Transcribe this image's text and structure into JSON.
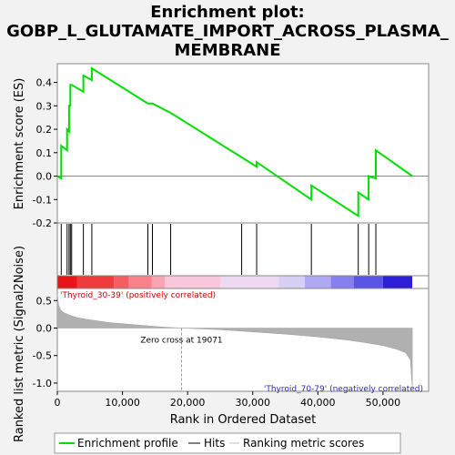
{
  "chart_data": {
    "type": "line",
    "title_lines": [
      "Enrichment plot:",
      "GOBP_L_GLUTAMATE_IMPORT_ACROSS_PLASMA_",
      "MEMBRANE"
    ],
    "ylabel_top": "Enrichment score (ES)",
    "ylabel_bottom": "Ranked list metric (Signal2Noise)",
    "xlabel": "Rank in Ordered Dataset",
    "x_ticks": [
      "0",
      "10,000",
      "20,000",
      "30,000",
      "40,000",
      "50,000"
    ],
    "x_tick_values": [
      0,
      10000,
      20000,
      30000,
      40000,
      50000
    ],
    "es_y_ticks": [
      "-0.2",
      "-0.1",
      "0.0",
      "0.1",
      "0.2",
      "0.3",
      "0.4"
    ],
    "es_y_tick_values": [
      -0.2,
      -0.1,
      0.0,
      0.1,
      0.2,
      0.3,
      0.4
    ],
    "es_ylim": [
      -0.2,
      0.48
    ],
    "metric_y_ticks": [
      "-1.0",
      "-0.5",
      "0.0",
      "0.5"
    ],
    "metric_y_tick_values": [
      -1.0,
      -0.5,
      0.0,
      0.5
    ],
    "metric_ylim": [
      -1.15,
      0.72
    ],
    "xlim": [
      0,
      57000
    ],
    "enrichment_profile": {
      "x": [
        0,
        600,
        600,
        1500,
        1500,
        1800,
        1800,
        2000,
        2000,
        2200,
        2200,
        4000,
        4000,
        5300,
        5300,
        13900,
        13900,
        14600,
        14600,
        17400,
        17400,
        28300,
        28300,
        30600,
        30600,
        39000,
        39000,
        46200,
        46200,
        47800,
        47800,
        48900,
        48900,
        54500
      ],
      "y": [
        0.0,
        -0.01,
        0.13,
        0.11,
        0.2,
        0.19,
        0.3,
        0.3,
        0.39,
        0.39,
        0.39,
        0.36,
        0.43,
        0.41,
        0.46,
        0.31,
        0.31,
        0.31,
        0.31,
        0.27,
        0.27,
        0.08,
        0.08,
        0.04,
        0.06,
        -0.1,
        -0.04,
        -0.17,
        -0.07,
        -0.1,
        0.0,
        -0.01,
        0.11,
        0.0
      ]
    },
    "hits": [
      600,
      1500,
      1800,
      2000,
      2200,
      4000,
      5300,
      13900,
      14600,
      17400,
      28300,
      30600,
      39000,
      46200,
      47800,
      48900
    ],
    "ranking_metric": {
      "x": [
        0,
        200,
        500,
        1000,
        2000,
        3000,
        5000,
        8000,
        12000,
        16000,
        19071,
        25000,
        30000,
        35000,
        40000,
        44000,
        47000,
        50000,
        52000,
        53500,
        54200,
        54500
      ],
      "y": [
        0.62,
        0.42,
        0.33,
        0.28,
        0.23,
        0.19,
        0.15,
        0.1,
        0.06,
        0.02,
        0.0,
        -0.03,
        -0.07,
        -0.11,
        -0.16,
        -0.21,
        -0.26,
        -0.32,
        -0.38,
        -0.45,
        -0.58,
        -1.1
      ]
    },
    "zero_cross_label": "Zero cross at 19071",
    "zero_cross_x": 19071,
    "positive_label": "'Thyroid_30-39' (positively correlated)",
    "negative_label": "'Thyroid_70-79' (negatively correlated)",
    "heatmap_colors": [
      "#e8141a",
      "#f03b3d",
      "#f45e63",
      "#f7828a",
      "#f9a4b4",
      "#f9c6dc",
      "#eed8f2",
      "#d6d0f4",
      "#b0a8f2",
      "#8580ee",
      "#5b55e6",
      "#2c1fd5"
    ],
    "heatmap_breaks": [
      0,
      3000,
      8700,
      11000,
      14500,
      16500,
      25000,
      34000,
      38000,
      42000,
      45500,
      50000,
      54500
    ],
    "legend": [
      "Enrichment profile",
      "Hits",
      "Ranking metric scores"
    ],
    "colors": {
      "profile": "#00dd00",
      "hits": "#000000",
      "metric": "#b0b0b0",
      "zero_line": "#888888"
    }
  }
}
